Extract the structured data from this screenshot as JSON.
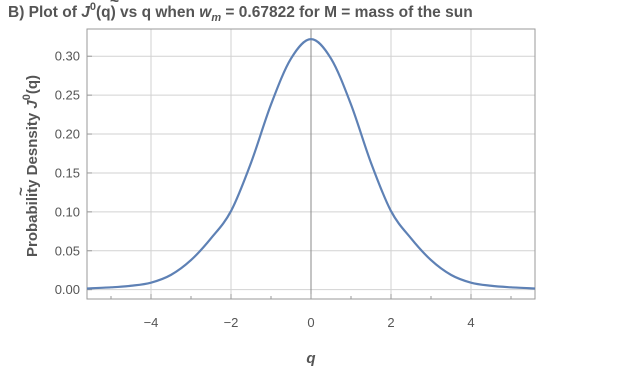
{
  "chart_data": {
    "type": "line",
    "title": {
      "prefix": "B) Plot of ",
      "func": "J",
      "func_mark": "~",
      "func_sup": "0",
      "mid": "(q) vs q when ",
      "w": "w",
      "w_sub": "m",
      "suffix": " = 0.67822 for M = mass of the sun"
    },
    "xlabel": "q",
    "ylabel": {
      "text": "Probability  Desnsity ",
      "func": "J",
      "func_mark": "~",
      "func_sup": "0",
      "arg": "(q)"
    },
    "xlim": [
      -5.6,
      5.6
    ],
    "ylim": [
      -0.012,
      0.335
    ],
    "xticks": [
      -4,
      -2,
      0,
      2,
      4
    ],
    "xtick_labels": [
      "−4",
      "−2",
      "0",
      "2",
      "4"
    ],
    "yticks": [
      0.0,
      0.05,
      0.1,
      0.15,
      0.2,
      0.25,
      0.3
    ],
    "ytick_labels": [
      "0.00",
      "0.05",
      "0.10",
      "0.15",
      "0.20",
      "0.25",
      "0.30"
    ],
    "grid": true,
    "line_color": "#5e81b5",
    "series": [
      {
        "x": [
          -5.6,
          -5.0,
          -4.5,
          -4.0,
          -3.5,
          -3.0,
          -2.5,
          -2.0,
          -1.5,
          -1.0,
          -0.5,
          0.0,
          0.5,
          1.0,
          1.5,
          2.0,
          2.5,
          3.0,
          3.5,
          4.0,
          4.5,
          5.0,
          5.6
        ],
        "y": [
          0.0015,
          0.003,
          0.005,
          0.009,
          0.019,
          0.038,
          0.066,
          0.101,
          0.163,
          0.238,
          0.297,
          0.322,
          0.297,
          0.238,
          0.163,
          0.101,
          0.066,
          0.038,
          0.019,
          0.009,
          0.005,
          0.003,
          0.0015
        ]
      }
    ]
  }
}
